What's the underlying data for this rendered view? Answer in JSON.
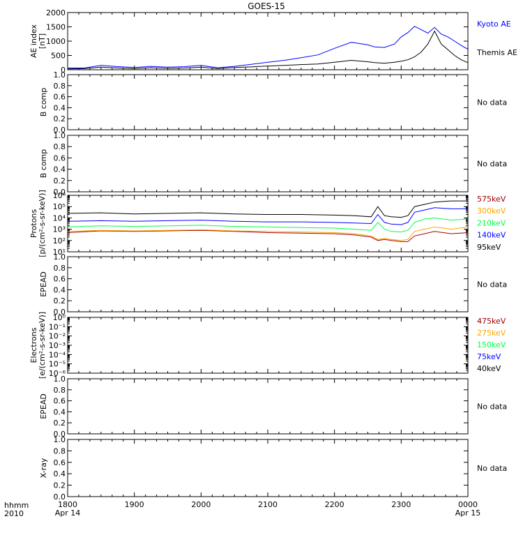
{
  "title": "GOES-15",
  "time_axis": {
    "corner_line1": "hhmm",
    "corner_line2": "2010",
    "ticks": [
      {
        "hhmm": "1800",
        "date": "Apr 14"
      },
      {
        "hhmm": "1900",
        "date": ""
      },
      {
        "hhmm": "2000",
        "date": ""
      },
      {
        "hhmm": "2100",
        "date": ""
      },
      {
        "hhmm": "2200",
        "date": ""
      },
      {
        "hhmm": "2300",
        "date": ""
      },
      {
        "hhmm": "0000",
        "date": "Apr 15"
      }
    ]
  },
  "no_data_text": "No data",
  "chart_data": [
    {
      "type": "line",
      "ylabel": [
        "AE index",
        "[nT]"
      ],
      "yscale": "linear",
      "ylim": [
        0,
        2000
      ],
      "yticks": [
        "0",
        "500",
        "1000",
        "1500",
        "2000"
      ],
      "x_hours": [
        18.0,
        18.25,
        18.5,
        18.75,
        19.0,
        19.25,
        19.5,
        19.75,
        20.0,
        20.25,
        20.5,
        20.75,
        21.0,
        21.25,
        21.5,
        21.75,
        22.0,
        22.25,
        22.5,
        22.6,
        22.75,
        22.9,
        23.0,
        23.1,
        23.2,
        23.3,
        23.4,
        23.5,
        23.6,
        23.7,
        23.8,
        23.9,
        24.0
      ],
      "series": [
        {
          "name": "Kyoto AE",
          "color": "#0000ff",
          "values": [
            60,
            60,
            150,
            110,
            80,
            120,
            90,
            110,
            150,
            70,
            120,
            190,
            260,
            330,
            420,
            520,
            750,
            960,
            870,
            800,
            780,
            900,
            1150,
            1300,
            1520,
            1400,
            1280,
            1480,
            1250,
            1150,
            1000,
            850,
            720
          ]
        },
        {
          "name": "Themis AE",
          "color": "#000000",
          "values": [
            30,
            40,
            90,
            60,
            40,
            70,
            50,
            60,
            90,
            40,
            80,
            100,
            130,
            150,
            180,
            200,
            260,
            330,
            280,
            250,
            230,
            260,
            300,
            350,
            450,
            620,
            900,
            1350,
            900,
            700,
            500,
            350,
            250
          ]
        }
      ]
    },
    {
      "type": "line",
      "ylabel": [
        "B comp"
      ],
      "yscale": "linear",
      "ylim": [
        0,
        1
      ],
      "yticks": [
        "0.0",
        "0.2",
        "0.4",
        "0.6",
        "0.8",
        "1.0"
      ],
      "series": []
    },
    {
      "type": "line",
      "ylabel": [
        "B comp"
      ],
      "yscale": "linear",
      "ylim": [
        0,
        1
      ],
      "yticks": [
        "0.0",
        "0.2",
        "0.4",
        "0.6",
        "0.8",
        "1.0"
      ],
      "series": []
    },
    {
      "type": "line",
      "ylabel": [
        "Protons",
        "[p/(cm²-s-sr-keV)]"
      ],
      "yscale": "log",
      "ylim_exp": [
        1,
        6
      ],
      "yticks": [
        "10¹",
        "10²",
        "10³",
        "10⁴",
        "10⁵",
        "10⁶"
      ],
      "x_hours": [
        18.0,
        18.5,
        19.0,
        19.5,
        20.0,
        20.5,
        21.0,
        21.5,
        22.0,
        22.3,
        22.55,
        22.65,
        22.75,
        22.85,
        23.0,
        23.1,
        23.2,
        23.35,
        23.5,
        23.75,
        24.0
      ],
      "series": [
        {
          "name": "575keV",
          "color": "#a00000",
          "log_values": [
            2.7,
            2.85,
            2.8,
            2.85,
            2.9,
            2.8,
            2.7,
            2.65,
            2.6,
            2.5,
            2.3,
            2.0,
            2.1,
            2.0,
            1.9,
            1.9,
            2.4,
            2.6,
            2.8,
            2.6,
            2.7
          ]
        },
        {
          "name": "300keV",
          "color": "#ffa500",
          "log_values": [
            2.8,
            2.9,
            2.85,
            2.9,
            2.95,
            2.85,
            2.8,
            2.75,
            2.7,
            2.6,
            2.4,
            2.1,
            2.2,
            2.1,
            2.0,
            2.1,
            2.8,
            3.0,
            3.2,
            3.0,
            3.2
          ]
        },
        {
          "name": "210keV",
          "color": "#00ff44",
          "log_values": [
            3.2,
            3.3,
            3.25,
            3.3,
            3.35,
            3.25,
            3.2,
            3.15,
            3.1,
            3.0,
            2.9,
            3.6,
            3.0,
            2.8,
            2.75,
            2.9,
            3.6,
            3.9,
            4.0,
            3.8,
            3.9
          ]
        },
        {
          "name": "140keV",
          "color": "#0000ff",
          "log_values": [
            3.7,
            3.75,
            3.7,
            3.75,
            3.8,
            3.7,
            3.65,
            3.65,
            3.6,
            3.55,
            3.5,
            4.3,
            3.6,
            3.45,
            3.4,
            3.6,
            4.5,
            4.7,
            4.9,
            4.8,
            4.8
          ]
        },
        {
          "name": "95keV",
          "color": "#000000",
          "log_values": [
            4.4,
            4.45,
            4.35,
            4.4,
            4.45,
            4.35,
            4.3,
            4.3,
            4.25,
            4.2,
            4.1,
            5.0,
            4.2,
            4.1,
            4.05,
            4.2,
            5.0,
            5.2,
            5.4,
            5.5,
            5.5
          ]
        }
      ]
    },
    {
      "type": "line",
      "ylabel": [
        "EPEAD"
      ],
      "yscale": "linear",
      "ylim": [
        0,
        1
      ],
      "yticks": [
        "0.0",
        "0.2",
        "0.4",
        "0.6",
        "0.8",
        "1.0"
      ],
      "series": []
    },
    {
      "type": "line",
      "ylabel": [
        "Electrons",
        "[e/(cm²-s-sr-keV)]"
      ],
      "yscale": "log",
      "ylim_exp": [
        -6,
        0
      ],
      "yticks": [
        "10⁻⁶",
        "10⁻⁵",
        "10⁻⁴",
        "10⁻³",
        "10⁻²",
        "10⁻¹",
        "10⁰"
      ],
      "series": [
        {
          "name": "475keV",
          "color": "#a00000"
        },
        {
          "name": "275keV",
          "color": "#ffa500"
        },
        {
          "name": "150keV",
          "color": "#00ff44"
        },
        {
          "name": "75keV",
          "color": "#0000ff"
        },
        {
          "name": "40keV",
          "color": "#000000"
        }
      ]
    },
    {
      "type": "line",
      "ylabel": [
        "EPEAD"
      ],
      "yscale": "linear",
      "ylim": [
        0,
        1
      ],
      "yticks": [
        "0.0",
        "0.2",
        "0.4",
        "0.6",
        "0.8",
        "1.0"
      ],
      "series": []
    },
    {
      "type": "line",
      "ylabel": [
        "X-ray"
      ],
      "yscale": "linear",
      "ylim": [
        0,
        1
      ],
      "yticks": [
        "0.0",
        "0.2",
        "0.4",
        "0.6",
        "0.8",
        "1.0"
      ],
      "series": []
    }
  ],
  "panel_status": [
    "",
    "No data",
    "No data",
    "",
    "No data",
    "",
    "No data",
    "No data"
  ]
}
